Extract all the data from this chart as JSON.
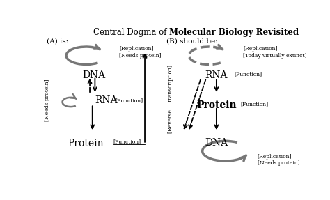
{
  "bg_color": "#ffffff",
  "gray": "#777777",
  "dark_gray": "#555555",
  "title_prefix": "Central Dogma of ",
  "title_bold": "Molecular Biology Revisited",
  "panel_a_label": "(A) is:",
  "panel_b_label": "(B) should be:",
  "repl_needs": "[Replication]\n[Needs protein]",
  "repl_extinct": "[Replication]\n[Today virtually extinct]",
  "function_label": "[Function]",
  "needs_protein_label": "[Needs protein]",
  "reverse_label": "[Reverse!!! transcription]"
}
